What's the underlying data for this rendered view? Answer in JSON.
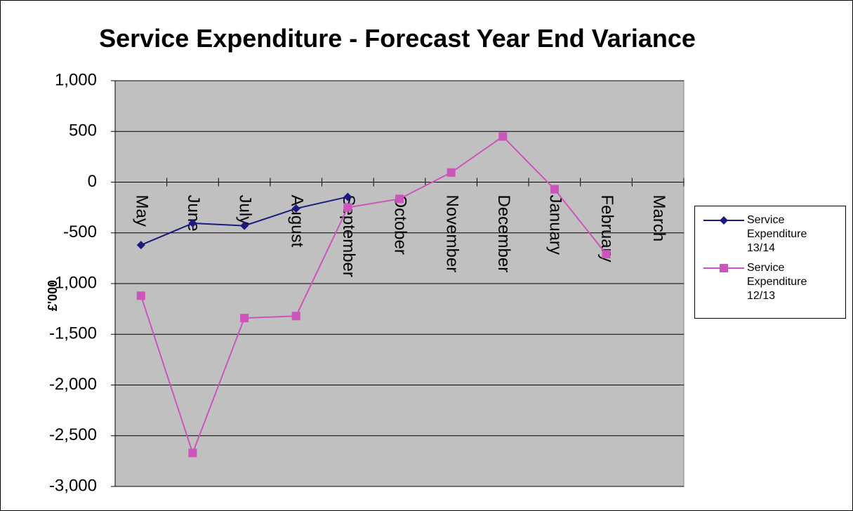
{
  "chart_data": {
    "type": "line",
    "title": "Service Expenditure - Forecast Year End Variance",
    "y_label": "£'000",
    "categories": [
      "May",
      "June",
      "July",
      "August",
      "September",
      "October",
      "November",
      "December",
      "January",
      "February",
      "March"
    ],
    "series": [
      {
        "name": "Service Expenditure 13/14",
        "color": "#1a1a80",
        "marker": "diamond",
        "values": [
          -620,
          -405,
          -430,
          -260,
          -145,
          null,
          null,
          null,
          null,
          null,
          null
        ]
      },
      {
        "name": "Service Expenditure 12/13",
        "color": "#cc55bb",
        "marker": "square",
        "values": [
          -1120,
          -2670,
          -1340,
          -1320,
          -250,
          -165,
          95,
          450,
          -70,
          -710,
          null
        ]
      }
    ],
    "ylim": [
      -3000,
      1000
    ],
    "yticks": [
      {
        "value": -3000,
        "label": "-3,000"
      },
      {
        "value": -2500,
        "label": "-2,500"
      },
      {
        "value": -2000,
        "label": "-2,000"
      },
      {
        "value": -1500,
        "label": "-1,500"
      },
      {
        "value": -1000,
        "label": "-1,000"
      },
      -500,
      0,
      500,
      {
        "value": 1000,
        "label": "1,000"
      }
    ],
    "grid": true,
    "legend": "right"
  }
}
